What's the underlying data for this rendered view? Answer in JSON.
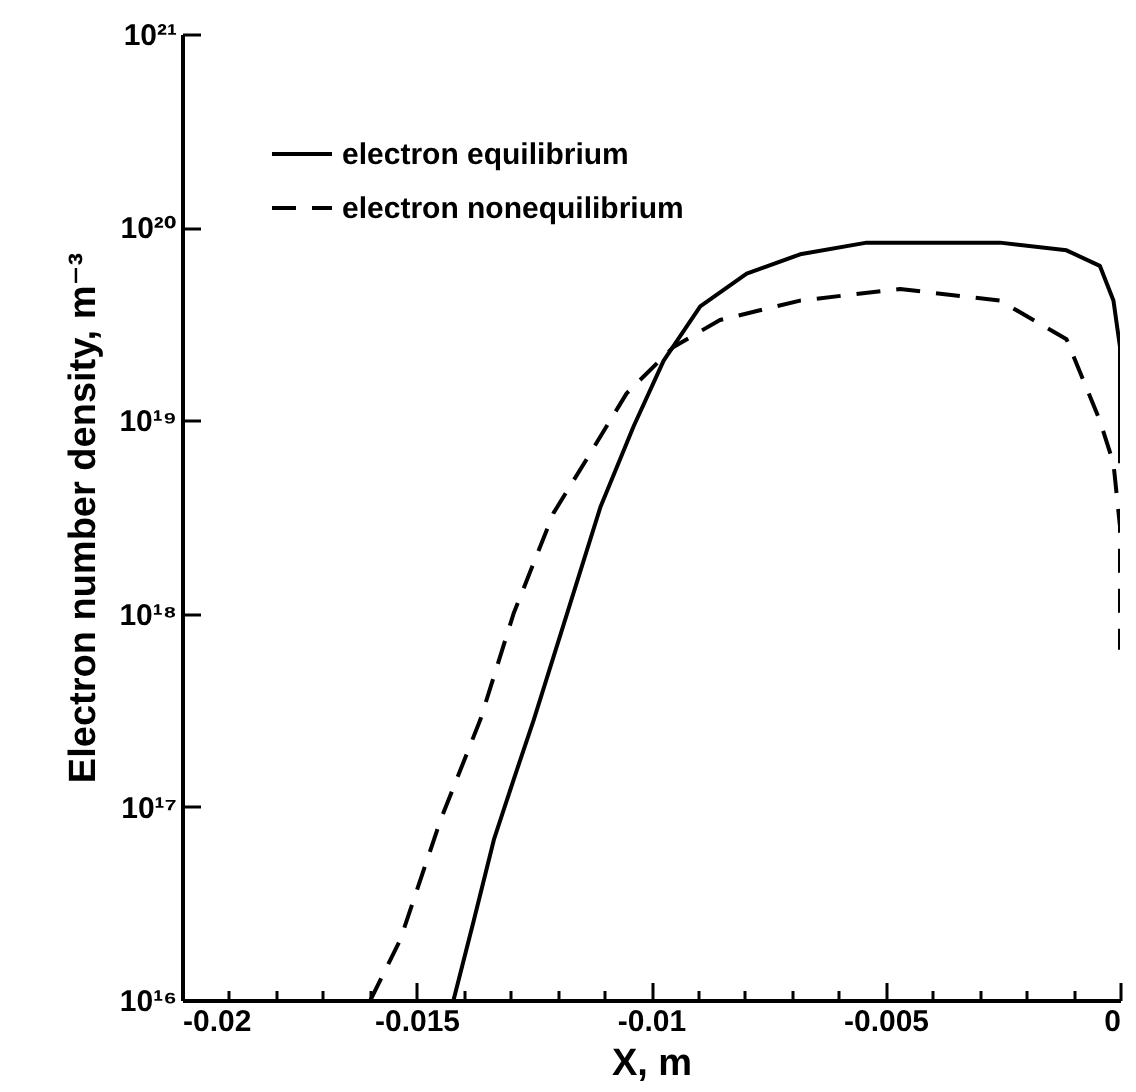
{
  "chart_data": {
    "type": "line",
    "xlabel": "X, m",
    "ylabel": "Electron number density, m⁻³",
    "log": "y",
    "legend": "top left",
    "grid": false,
    "xlim": [
      -0.02,
      0
    ],
    "xticks": [
      -0.02,
      {
        "value": -0.019,
        "label": null
      },
      {
        "value": -0.018,
        "label": null
      },
      {
        "value": -0.017,
        "label": null
      },
      {
        "value": -0.016,
        "label": null
      },
      -0.015,
      {
        "value": -0.014,
        "label": null
      },
      {
        "value": -0.013,
        "label": null
      },
      {
        "value": -0.012,
        "label": null
      },
      {
        "value": -0.011,
        "label": null
      },
      -0.01,
      {
        "value": -0.009,
        "label": null
      },
      {
        "value": -0.008,
        "label": null
      },
      {
        "value": -0.007,
        "label": null
      },
      {
        "value": -0.006,
        "label": null
      },
      -0.005,
      {
        "value": -0.004,
        "label": null
      },
      {
        "value": -0.003,
        "label": null
      },
      {
        "value": -0.002,
        "label": null
      },
      {
        "value": -0.001,
        "label": null
      },
      0
    ],
    "ylim": [
      1e+16,
      1e+21
    ],
    "yticks": [
      {
        "value": 1e+16,
        "label": "10¹⁶"
      },
      {
        "value": 1e+17,
        "label": "10¹⁷"
      },
      {
        "value": 1e+18,
        "label": "10¹⁸"
      },
      {
        "value": 1e+19,
        "label": "10¹⁹"
      },
      {
        "value": 1e+20,
        "label": "10²⁰"
      },
      {
        "value": 1e+21,
        "label": "10²¹"
      }
    ],
    "series": [
      {
        "name": "electron equilibrium",
        "color": "#000000",
        "line_style": "solid",
        "x": [
          -0.01421,
          -0.01378,
          -0.01335,
          -0.01293,
          -0.0125,
          -0.01179,
          -0.01108,
          -0.01037,
          -0.00973,
          -0.00895,
          -0.00796,
          -0.00682,
          -0.0054,
          -0.00256,
          -0.00114,
          -0.00043,
          -0.00014,
          0,
          0
        ],
        "values": [
          1e+16,
          2.57e+16,
          6.76e+16,
          1.38e+17,
          2.82e+17,
          1e+18,
          3.55e+18,
          9.33e+18,
          2.04e+19,
          3.89e+19,
          5.75e+19,
          7.24e+19,
          8.32e+19,
          8.32e+19,
          7.59e+19,
          6.31e+19,
          4.17e+19,
          2.4e+19,
          6e+18
        ]
      },
      {
        "name": "electron nonequilibrium",
        "color": "#000000",
        "line_style": "dashed",
        "x": [
          -0.01598,
          -0.01535,
          -0.01449,
          -0.01364,
          -0.01293,
          -0.01208,
          -0.01137,
          -0.01052,
          -0.00952,
          -0.00853,
          -0.00682,
          -0.00469,
          -0.00256,
          -0.00114,
          -0.00043,
          -0.00014,
          0,
          0
        ],
        "values": [
          1e+16,
          2.04e+16,
          8.51e+16,
          2.82e+17,
          1e+18,
          3.31e+18,
          6.31e+18,
          1.38e+19,
          2.4e+19,
          3.31e+19,
          4.17e+19,
          4.79e+19,
          4.17e+19,
          2.63e+19,
          1e+19,
          6e+18,
          2.82e+18,
          6.5e+17
        ]
      }
    ]
  }
}
